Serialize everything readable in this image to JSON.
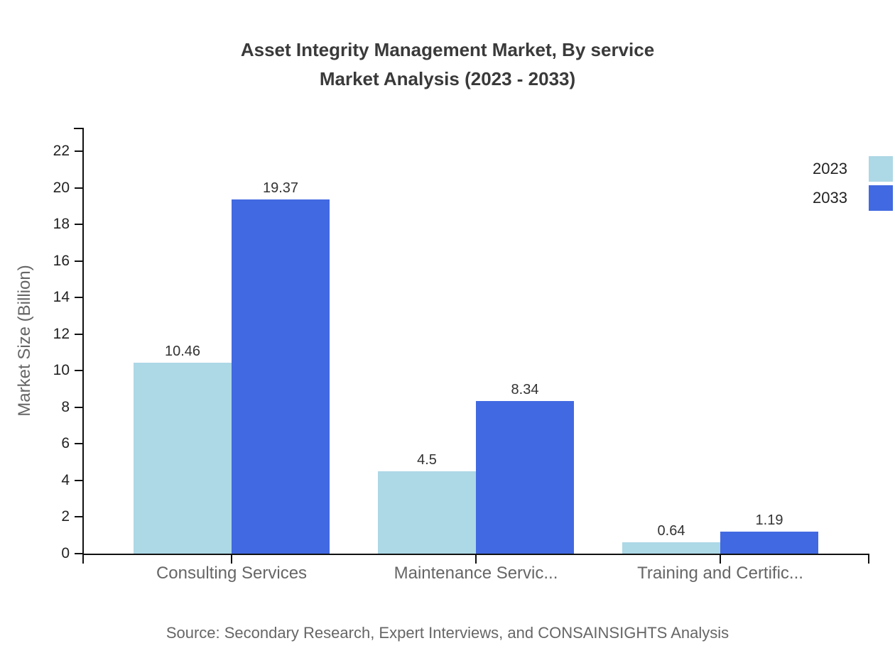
{
  "title": {
    "line1": "Asset Integrity Management Market, By service",
    "line2": "Market Analysis (2023 - 2033)"
  },
  "source_text": "Source: Secondary Research, Expert Interviews, and CONSAINSIGHTS Analysis",
  "chart_data": {
    "type": "bar",
    "title": "Asset Integrity Management Market, By service Market Analysis (2023 - 2033)",
    "categories": [
      "Consulting Services",
      "Maintenance Servic...",
      "Training and Certific..."
    ],
    "series": [
      {
        "name": "2023",
        "color": "#add8e6",
        "values": [
          10.46,
          4.5,
          0.64
        ]
      },
      {
        "name": "2033",
        "color": "#4169e1",
        "values": [
          19.37,
          8.34,
          1.19
        ]
      }
    ],
    "xlabel": "",
    "ylabel": "Market Size (Billion)",
    "ylim": [
      0,
      23.3
    ],
    "yticks": [
      0,
      2,
      4,
      6,
      8,
      10,
      12,
      14,
      16,
      18,
      20,
      22
    ],
    "grid": false,
    "legend_position": "top-right",
    "value_labels_shown": true,
    "axis_color": "#111111",
    "text_colors": {
      "title": "#3a3a3a",
      "axis_ticks": "#222222",
      "category_labels": "#666666",
      "value_labels": "#333333",
      "source": "#666666"
    }
  }
}
